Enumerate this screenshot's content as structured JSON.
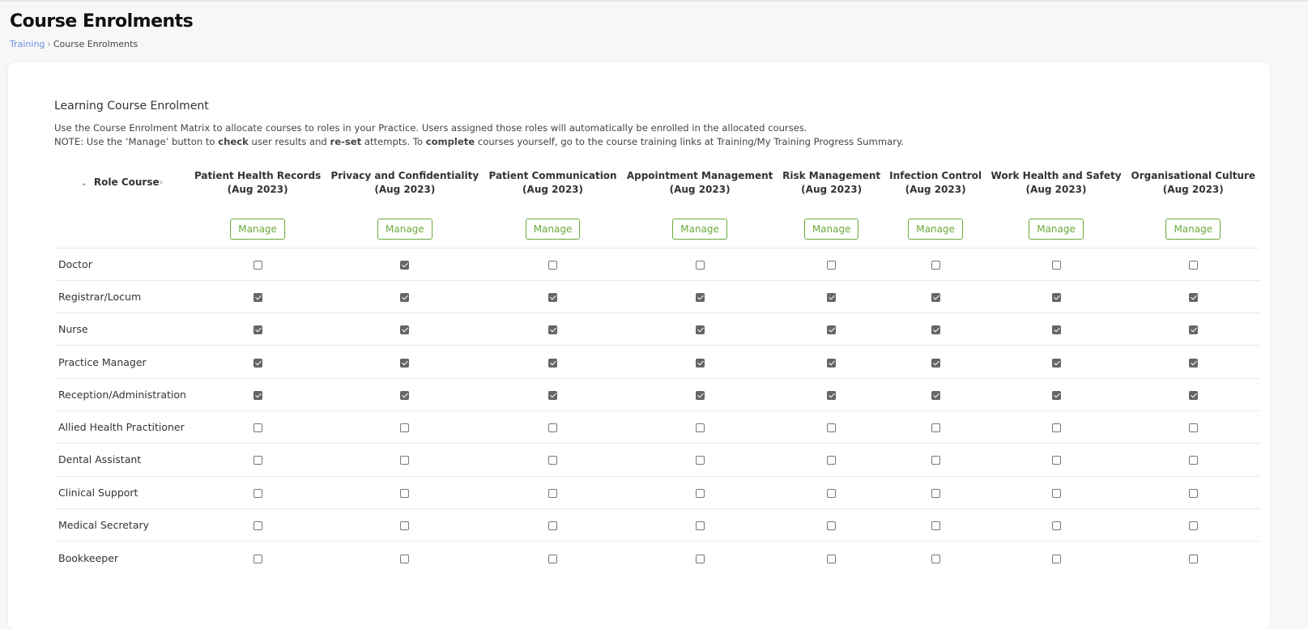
{
  "page": {
    "title": "Course Enrolments",
    "breadcrumb": [
      {
        "label": "Training"
      },
      {
        "label": "Course Enrolments"
      }
    ]
  },
  "section": {
    "title": "Learning Course Enrolment",
    "line1": "Use the Course Enrolment Matrix to allocate courses to roles in your Practice. Users assigned those roles will automatically be enrolled in the allocated courses.",
    "note_parts": [
      "NOTE: Use the ‘Manage’ button to ",
      "check",
      " user results and ",
      "re-set",
      " attempts. To ",
      "complete",
      " courses yourself, go to the course training links at Training/My Training Progress Summary."
    ]
  },
  "matrix": {
    "corner_label": "Role Course",
    "manage_label": "Manage",
    "courses": [
      {
        "line1": "Patient Health Records",
        "line2": "(Aug 2023)"
      },
      {
        "line1": "Privacy and Confidentiality",
        "line2": "(Aug 2023)"
      },
      {
        "line1": "Patient Communication",
        "line2": "(Aug 2023)"
      },
      {
        "line1": "Appointment Management",
        "line2": "(Aug 2023)"
      },
      {
        "line1": "Risk Management",
        "line2": "(Aug 2023)"
      },
      {
        "line1": "Infection Control",
        "line2": "(Aug 2023)"
      },
      {
        "line1": "Work Health and Safety",
        "line2": "(Aug 2023)"
      },
      {
        "line1": "Organisational Culture",
        "line2": "(Aug 2023)"
      }
    ],
    "roles": [
      {
        "name": "Doctor",
        "enrolled": [
          false,
          true,
          false,
          false,
          false,
          false,
          false,
          false
        ]
      },
      {
        "name": "Registrar/Locum",
        "enrolled": [
          true,
          true,
          true,
          true,
          true,
          true,
          true,
          true
        ]
      },
      {
        "name": "Nurse",
        "enrolled": [
          true,
          true,
          true,
          true,
          true,
          true,
          true,
          true
        ]
      },
      {
        "name": "Practice Manager",
        "enrolled": [
          true,
          true,
          true,
          true,
          true,
          true,
          true,
          true
        ]
      },
      {
        "name": "Reception/Administration",
        "enrolled": [
          true,
          true,
          true,
          true,
          true,
          true,
          true,
          true
        ]
      },
      {
        "name": "Allied Health Practitioner",
        "enrolled": [
          false,
          false,
          false,
          false,
          false,
          false,
          false,
          false
        ]
      },
      {
        "name": "Dental Assistant",
        "enrolled": [
          false,
          false,
          false,
          false,
          false,
          false,
          false,
          false
        ]
      },
      {
        "name": "Clinical Support",
        "enrolled": [
          false,
          false,
          false,
          false,
          false,
          false,
          false,
          false
        ]
      },
      {
        "name": "Medical Secretary",
        "enrolled": [
          false,
          false,
          false,
          false,
          false,
          false,
          false,
          false
        ]
      },
      {
        "name": "Bookkeeper",
        "enrolled": [
          false,
          false,
          false,
          false,
          false,
          false,
          false,
          false
        ]
      }
    ]
  },
  "colors": {
    "accent": "#6aaa3a",
    "link": "#6b8fe0"
  }
}
